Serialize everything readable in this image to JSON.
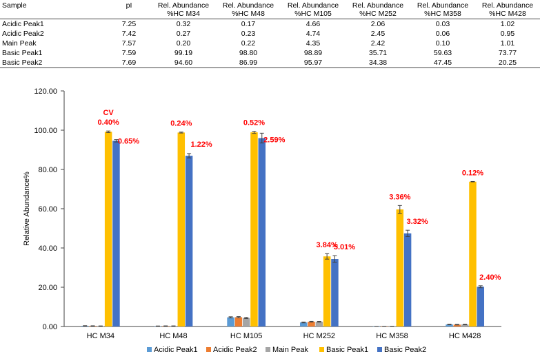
{
  "table": {
    "headers": [
      "Sample",
      "pI",
      "Rel. Abundance\n%HC M34",
      "Rel. Abundance\n%HC M48",
      "Rel. Abundance\n%HC M105",
      "Rel. Abundance\n%HC M252",
      "Rel. Abundance\n%HC M358",
      "Rel. Abundance\n%HC M428"
    ],
    "rows": [
      [
        "Acidic Peak1",
        "7.25",
        "0.32",
        "0.17",
        "4.66",
        "2.06",
        "0.03",
        "1.02"
      ],
      [
        "Acidic Peak2",
        "7.42",
        "0.27",
        "0.23",
        "4.74",
        "2.45",
        "0.06",
        "0.95"
      ],
      [
        "Main Peak",
        "7.57",
        "0.20",
        "0.22",
        "4.35",
        "2.42",
        "0.10",
        "1.01"
      ],
      [
        "Basic Peak1",
        "7.59",
        "99.19",
        "98.80",
        "98.89",
        "35.71",
        "59.63",
        "73.77"
      ],
      [
        "Basic Peak2",
        "7.69",
        "94.60",
        "86.99",
        "95.97",
        "34.38",
        "47.45",
        "20.25"
      ]
    ]
  },
  "chart_data": {
    "type": "bar",
    "categories": [
      "HC M34",
      "HC M48",
      "HC M105",
      "HC M252",
      "HC M358",
      "HC M428"
    ],
    "series": [
      {
        "name": "Acidic Peak1",
        "color": "#5b9bd5",
        "values": [
          0.32,
          0.17,
          4.66,
          2.06,
          0.03,
          1.02
        ],
        "errors": [
          0.1,
          0.1,
          0.3,
          0.2,
          0.05,
          0.15
        ]
      },
      {
        "name": "Acidic Peak2",
        "color": "#ed7d31",
        "values": [
          0.27,
          0.23,
          4.74,
          2.45,
          0.06,
          0.95
        ],
        "errors": [
          0.1,
          0.1,
          0.3,
          0.2,
          0.05,
          0.15
        ]
      },
      {
        "name": "Main Peak",
        "color": "#a5a5a5",
        "values": [
          0.2,
          0.22,
          4.35,
          2.42,
          0.1,
          1.01
        ],
        "errors": [
          0.1,
          0.1,
          0.3,
          0.2,
          0.05,
          0.15
        ]
      },
      {
        "name": "Basic Peak1",
        "color": "#ffc000",
        "values": [
          99.19,
          98.8,
          98.89,
          35.71,
          59.63,
          73.77
        ],
        "errors": [
          0.4,
          0.24,
          0.52,
          1.4,
          2.0,
          0.1
        ],
        "cv_labels": [
          "0.40%",
          "0.24%",
          "0.52%",
          "3.84%",
          "3.36%",
          "0.12%"
        ]
      },
      {
        "name": "Basic Peak2",
        "color": "#4472c4",
        "values": [
          94.6,
          86.99,
          95.97,
          34.38,
          47.45,
          20.25
        ],
        "errors": [
          0.6,
          1.1,
          2.5,
          1.7,
          1.6,
          0.5
        ],
        "cv_labels": [
          "0.65%",
          "1.22%",
          "2.59%",
          "5.01%",
          "3.32%",
          "2.40%"
        ]
      }
    ],
    "cv_title": "CV",
    "ylabel": "Relative Abundance%",
    "xlabel": "",
    "ylim": [
      0,
      120
    ],
    "yticks": [
      "0.00",
      "20.00",
      "40.00",
      "60.00",
      "80.00",
      "100.00",
      "120.00"
    ],
    "grid": false,
    "legend": "bottom"
  }
}
